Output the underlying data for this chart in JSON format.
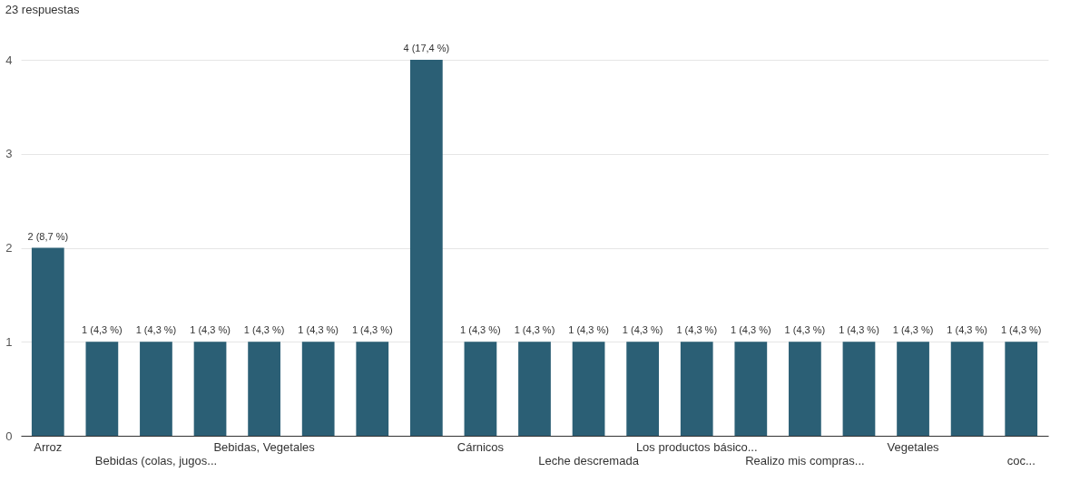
{
  "chart_data": {
    "type": "bar",
    "title": "23 respuestas",
    "categories": [
      "Arroz",
      null,
      "Bebidas (colas, jugos...",
      null,
      "Bebidas, Vegetales",
      null,
      null,
      null,
      "Cárnicos",
      null,
      "Leche descremada",
      null,
      "Los productos básico...",
      null,
      "Realizo mis compras...",
      null,
      "Vegetales",
      null,
      "coc..."
    ],
    "values": [
      2,
      1,
      1,
      1,
      1,
      1,
      1,
      4,
      1,
      1,
      1,
      1,
      1,
      1,
      1,
      1,
      1,
      1,
      1
    ],
    "value_labels": [
      "2 (8,7 %)",
      "1 (4,3 %)",
      "1 (4,3 %)",
      "1 (4,3 %)",
      "1 (4,3 %)",
      "1 (4,3 %)",
      "1 (4,3 %)",
      "4 (17,4 %)",
      "1 (4,3 %)",
      "1 (4,3 %)",
      "1 (4,3 %)",
      "1 (4,3 %)",
      "1 (4,3 %)",
      "1 (4,3 %)",
      "1 (4,3 %)",
      "1 (4,3 %)",
      "1 (4,3 %)",
      "1 (4,3 %)",
      "1 (4,3 %)"
    ],
    "color": "#2b5f75",
    "ylim": [
      0,
      4
    ],
    "yticks": [
      0,
      1,
      2,
      3,
      4
    ],
    "grid": "y"
  }
}
